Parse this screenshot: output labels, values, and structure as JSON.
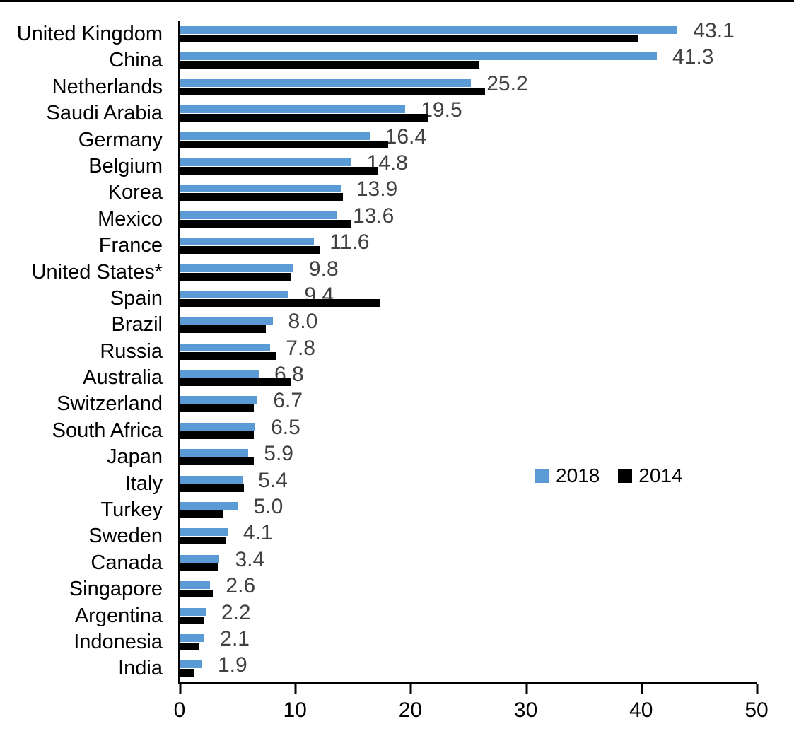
{
  "chart_data": {
    "type": "bar",
    "orientation": "horizontal",
    "title": "",
    "xlabel": "",
    "ylabel": "",
    "xlim": [
      0,
      50
    ],
    "x_ticks": [
      "0",
      "10",
      "20",
      "30",
      "40",
      "50"
    ],
    "grid": false,
    "legend_position": "middle-right",
    "categories": [
      "United Kingdom",
      "China",
      "Netherlands",
      "Saudi Arabia",
      "Germany",
      "Belgium",
      "Korea",
      "Mexico",
      "France",
      "United States*",
      "Spain",
      "Brazil",
      "Russia",
      "Australia",
      "Switzerland",
      "South Africa",
      "Japan",
      "Italy",
      "Turkey",
      "Sweden",
      "Canada",
      "Singapore",
      "Argentina",
      "Indonesia",
      "India"
    ],
    "series": [
      {
        "name": "2018",
        "color": "#5B9BD5",
        "values": [
          43.1,
          41.3,
          25.2,
          19.5,
          16.4,
          14.8,
          13.9,
          13.6,
          11.6,
          9.8,
          9.4,
          8.0,
          7.8,
          6.8,
          6.7,
          6.5,
          5.9,
          5.4,
          5.0,
          4.1,
          3.4,
          2.6,
          2.2,
          2.1,
          1.9
        ]
      },
      {
        "name": "2014",
        "color": "#000000",
        "values": [
          39.7,
          25.9,
          26.4,
          21.5,
          18.0,
          17.1,
          14.1,
          14.8,
          12.1,
          9.6,
          17.3,
          7.4,
          8.3,
          9.6,
          6.4,
          6.4,
          6.4,
          5.5,
          3.7,
          4.0,
          3.3,
          2.8,
          2.0,
          1.6,
          1.2
        ]
      }
    ],
    "data_labels": {
      "attached_to_series": "2018",
      "color": "#404040",
      "values": [
        "43.1",
        "41.3",
        "25.2",
        "19.5",
        "16.4",
        "14.8",
        "13.9",
        "13.6",
        "11.6",
        "9.8",
        "9.4",
        "8.0",
        "7.8",
        "6.8",
        "6.7",
        "6.5",
        "5.9",
        "5.4",
        "5.0",
        "4.1",
        "3.4",
        "2.6",
        "2.2",
        "2.1",
        "1.9"
      ]
    }
  },
  "legend": {
    "items": [
      {
        "label": "2018",
        "color": "#5B9BD5"
      },
      {
        "label": "2014",
        "color": "#000000"
      }
    ]
  },
  "colors": {
    "background": "#ffffff",
    "axis": "#000000",
    "category_text": "#000000",
    "value_text": "#404040"
  }
}
